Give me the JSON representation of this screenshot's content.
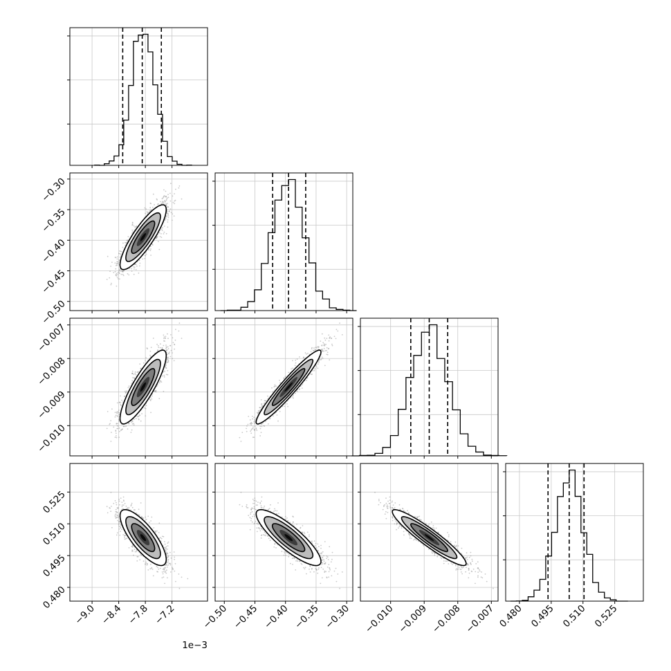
{
  "chart_data": {
    "type": "corner",
    "title": "",
    "parameters": [
      {
        "xlim": [
          -0.0095,
          -0.0064
        ],
        "ticks": [
          -0.009,
          -0.0084,
          -0.0078,
          -0.0072
        ],
        "tick_labels": [
          "−9.0",
          "−8.4",
          "−7.8",
          "−7.2"
        ],
        "offset_text": "1e−3"
      },
      {
        "xlim": [
          -0.515,
          -0.29
        ],
        "ticks": [
          -0.5,
          -0.45,
          -0.4,
          -0.35,
          -0.3
        ],
        "tick_labels": [
          "−0.50",
          "−0.45",
          "−0.40",
          "−0.35",
          "−0.30"
        ]
      },
      {
        "xlim": [
          -0.0109,
          -0.0068
        ],
        "ticks": [
          -0.01,
          -0.009,
          -0.008,
          -0.007
        ],
        "tick_labels": [
          "−0.010",
          "−0.009",
          "−0.008",
          "−0.007"
        ]
      },
      {
        "xlim": [
          0.4735,
          0.5385
        ],
        "ticks": [
          0.48,
          0.495,
          0.51,
          0.525
        ],
        "tick_labels": [
          "0.480",
          "0.495",
          "0.510",
          "0.525"
        ]
      }
    ],
    "means": [
      -0.00785,
      -0.395,
      -0.00885,
      0.5035
    ],
    "stds": [
      0.00026,
      0.0265,
      0.00055,
      0.0066
    ],
    "quantiles": [
      [
        -0.00831,
        -0.00787,
        -0.00744
      ],
      [
        -0.421,
        -0.395,
        -0.367
      ],
      [
        -0.0094,
        -0.00885,
        -0.0083
      ],
      [
        0.4935,
        0.5035,
        0.5105
      ]
    ],
    "correlations": [
      [
        1.0,
        0.85,
        0.85,
        -0.78
      ],
      [
        0.85,
        1.0,
        0.95,
        -0.85
      ],
      [
        0.85,
        0.95,
        1.0,
        -0.93
      ],
      [
        -0.78,
        -0.85,
        -0.93,
        1.0
      ]
    ],
    "grid": true,
    "histogram_bins": 20
  }
}
